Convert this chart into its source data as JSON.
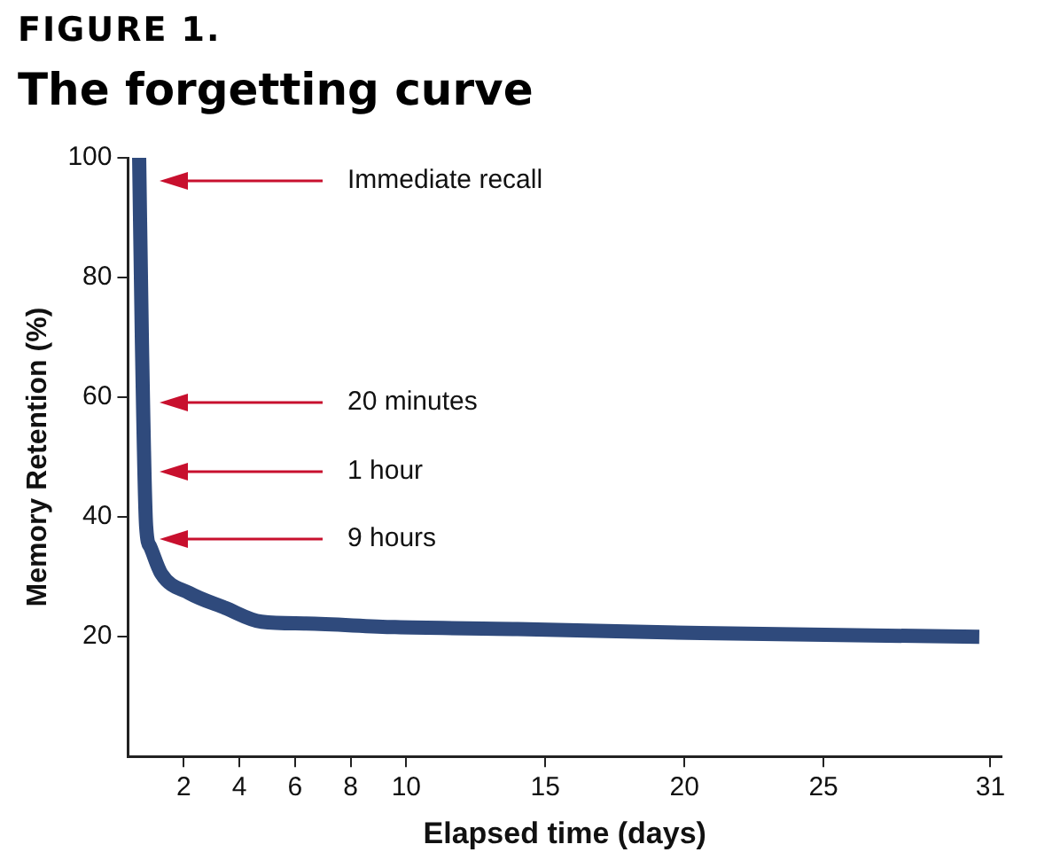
{
  "chart_data": {
    "type": "line",
    "title": "FIGURE 1.",
    "subtitle": "The forgetting curve",
    "xlabel": "Elapsed time (days)",
    "ylabel": "Memory Retention (%)",
    "x": [
      0.4,
      0.5,
      0.65,
      0.8,
      1.2,
      2.2,
      3.5,
      4.8,
      6.4,
      9.6,
      14,
      20.6,
      30.6
    ],
    "series": [
      {
        "color": "#2f4a7c",
        "values": [
          100,
          69,
          38.5,
          35,
          30.5,
          27.3,
          24.8,
          22.5,
          22.2,
          21.6,
          21.3,
          20.6,
          20
        ]
      }
    ],
    "xlim": [
      0,
      31.4
    ],
    "xticks": [
      2,
      4,
      6,
      8,
      10,
      15,
      20,
      25,
      31
    ],
    "ylim": [
      0,
      100
    ],
    "yticks": [
      20,
      40,
      60,
      80,
      100
    ],
    "annotations": [
      "Immediate recall",
      "20 minutes",
      "1 hour",
      "9 hours"
    ],
    "grid": false,
    "legend": false,
    "marker": "none",
    "line_style": "solid"
  }
}
